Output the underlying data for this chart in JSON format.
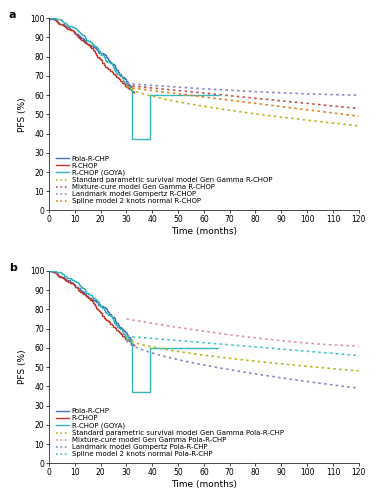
{
  "panel_a": {
    "title": "a",
    "ylabel": "PFS (%)",
    "xlabel": "Time (months)",
    "xlim": [
      0,
      120
    ],
    "ylim": [
      0,
      100
    ],
    "xticks": [
      0,
      10,
      20,
      30,
      40,
      50,
      60,
      70,
      80,
      90,
      100,
      110,
      120
    ],
    "yticks": [
      0,
      10,
      20,
      30,
      40,
      50,
      60,
      70,
      80,
      90,
      100
    ],
    "curves": {
      "pola_rchp": {
        "color": "#4472c4",
        "lw": 1.0,
        "label": "Pola-R-CHP"
      },
      "rchop": {
        "color": "#c0392b",
        "lw": 1.0,
        "label": "R-CHOP"
      },
      "rchop_goya": {
        "color": "#3ab5b5",
        "lw": 1.0,
        "label": "R-CHOP (GOYA)"
      },
      "std_param": {
        "color": "#b8b820",
        "lw": 1.2,
        "label": "Standard parametric survival model Gen Gamma R-CHOP"
      },
      "mix_cure": {
        "color": "#c05050",
        "lw": 1.2,
        "label": "Mixture-cure model Gen Gamma R-CHOP"
      },
      "landmark": {
        "color": "#8888cc",
        "lw": 1.2,
        "label": "Landmark model Gompertz R-CHOP"
      },
      "spline": {
        "color": "#e08020",
        "lw": 1.2,
        "label": "Spline model 2 knots normal R-CHOP"
      }
    }
  },
  "panel_b": {
    "title": "b",
    "ylabel": "PFS (%)",
    "xlabel": "Time (months)",
    "xlim": [
      0,
      120
    ],
    "ylim": [
      0,
      100
    ],
    "xticks": [
      0,
      10,
      20,
      30,
      40,
      50,
      60,
      70,
      80,
      90,
      100,
      110,
      120
    ],
    "yticks": [
      0,
      10,
      20,
      30,
      40,
      50,
      60,
      70,
      80,
      90,
      100
    ],
    "curves": {
      "pola_rchp": {
        "color": "#4472c4",
        "lw": 1.0,
        "label": "Pola-R-CHP"
      },
      "rchop": {
        "color": "#c0392b",
        "lw": 1.0,
        "label": "R-CHOP"
      },
      "rchop_goya": {
        "color": "#3ab5b5",
        "lw": 1.0,
        "label": "R-CHOP (GOYA)"
      },
      "std_param": {
        "color": "#b8b820",
        "lw": 1.2,
        "label": "Standard parametric survival model Gen Gamma Pola-R-CHP"
      },
      "mix_cure": {
        "color": "#e090b0",
        "lw": 1.2,
        "label": "Mixture-cure model Gen Gamma Pola-R-CHP"
      },
      "landmark": {
        "color": "#8888cc",
        "lw": 1.2,
        "label": "Landmark model Gompertz Pola-R-CHP"
      },
      "spline": {
        "color": "#40c8c8",
        "lw": 1.2,
        "label": "Spline model 2 knots normal Pola-R-CHP"
      }
    }
  },
  "bg_color": "#ffffff",
  "font_size": 5.5,
  "axis_label_fontsize": 6.5,
  "tick_fontsize": 5.5
}
